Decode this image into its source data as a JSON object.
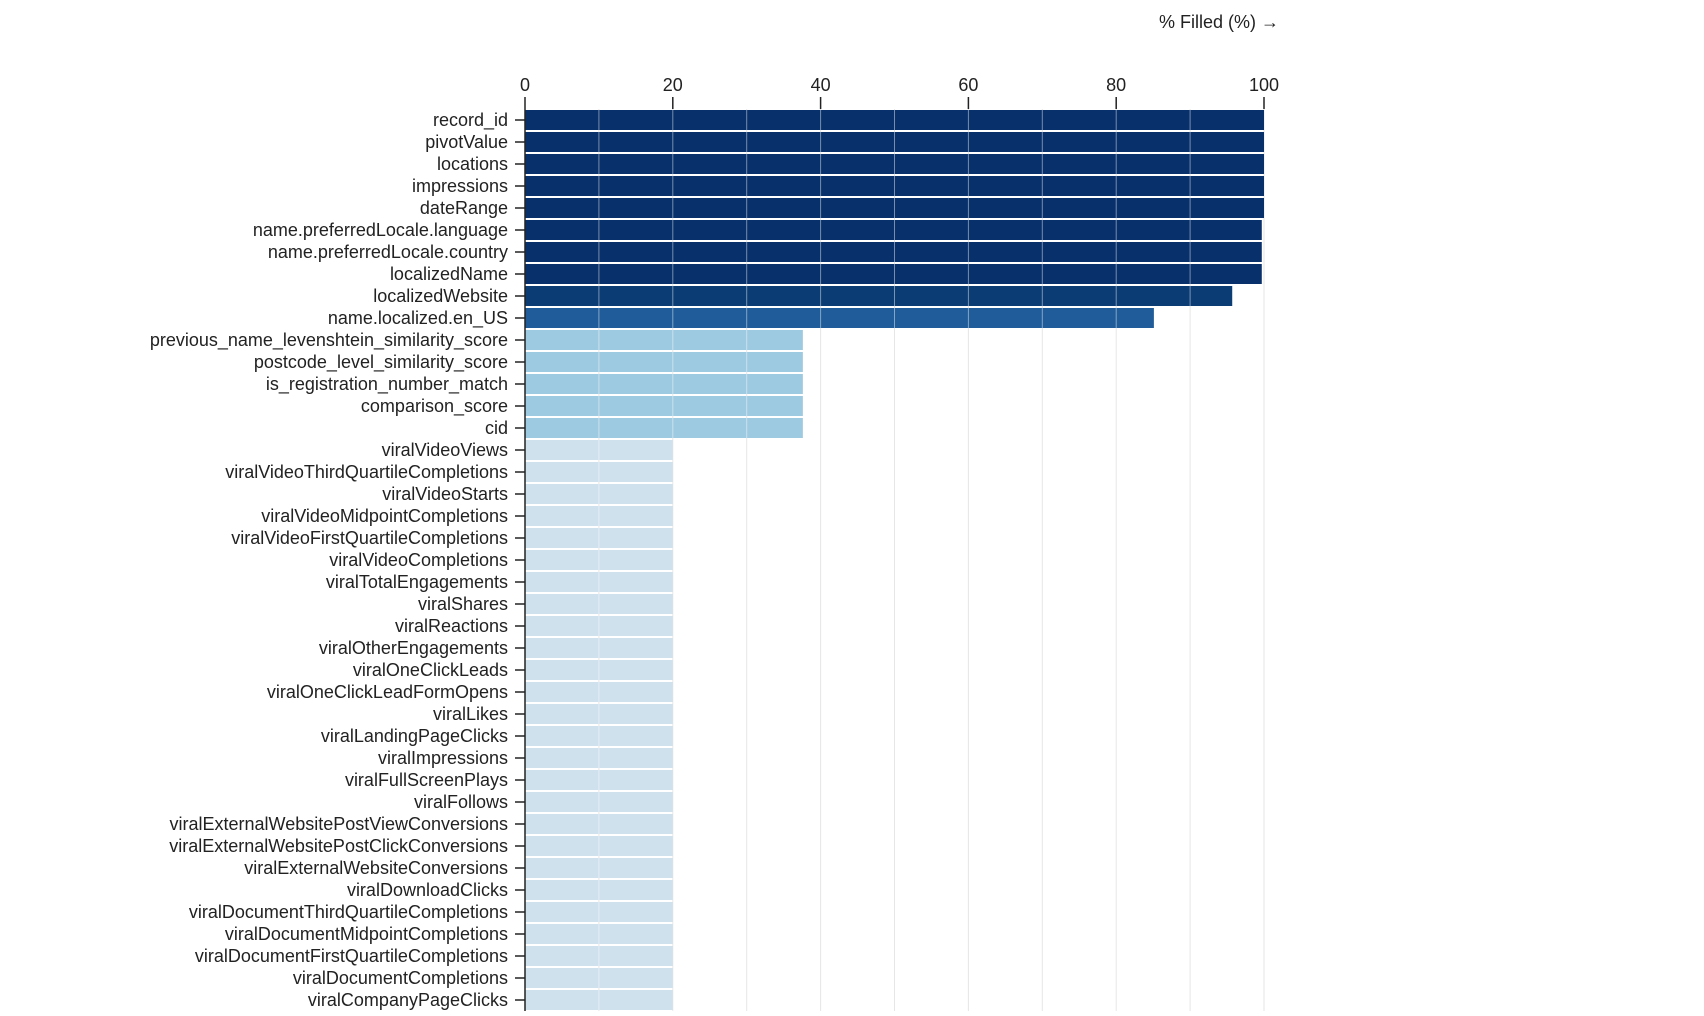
{
  "chart_data": {
    "type": "bar",
    "orientation": "horizontal",
    "xlabel": "% Filled (%) →",
    "ylabel": "",
    "xlim": [
      0,
      100
    ],
    "xticks": [
      0,
      20,
      40,
      60,
      80,
      100
    ],
    "grid": true,
    "categories": [
      "record_id",
      "pivotValue",
      "locations",
      "impressions",
      "dateRange",
      "name.preferredLocale.language",
      "name.preferredLocale.country",
      "localizedName",
      "localizedWebsite",
      "name.localized.en_US",
      "previous_name_levenshtein_similarity_score",
      "postcode_level_similarity_score",
      "is_registration_number_match",
      "comparison_score",
      "cid",
      "viralVideoViews",
      "viralVideoThirdQuartileCompletions",
      "viralVideoStarts",
      "viralVideoMidpointCompletions",
      "viralVideoFirstQuartileCompletions",
      "viralVideoCompletions",
      "viralTotalEngagements",
      "viralShares",
      "viralReactions",
      "viralOtherEngagements",
      "viralOneClickLeads",
      "viralOneClickLeadFormOpens",
      "viralLikes",
      "viralLandingPageClicks",
      "viralImpressions",
      "viralFullScreenPlays",
      "viralFollows",
      "viralExternalWebsitePostViewConversions",
      "viralExternalWebsitePostClickConversions",
      "viralExternalWebsiteConversions",
      "viralDownloadClicks",
      "viralDocumentThirdQuartileCompletions",
      "viralDocumentMidpointCompletions",
      "viralDocumentFirstQuartileCompletions",
      "viralDocumentCompletions",
      "viralCompanyPageClicks"
    ],
    "values": [
      100,
      100,
      100,
      100,
      100,
      99.7,
      99.7,
      99.7,
      95.7,
      85.1,
      37.6,
      37.6,
      37.6,
      37.6,
      37.6,
      20,
      20,
      20,
      20,
      20,
      20,
      20,
      20,
      20,
      20,
      20,
      20,
      20,
      20,
      20,
      20,
      20,
      20,
      20,
      20,
      20,
      20,
      20,
      20,
      20,
      20
    ],
    "color_scale": [
      "#cfe1ed",
      "#9ecae1",
      "#1f5c99",
      "#0b3c74",
      "#08306b"
    ]
  }
}
